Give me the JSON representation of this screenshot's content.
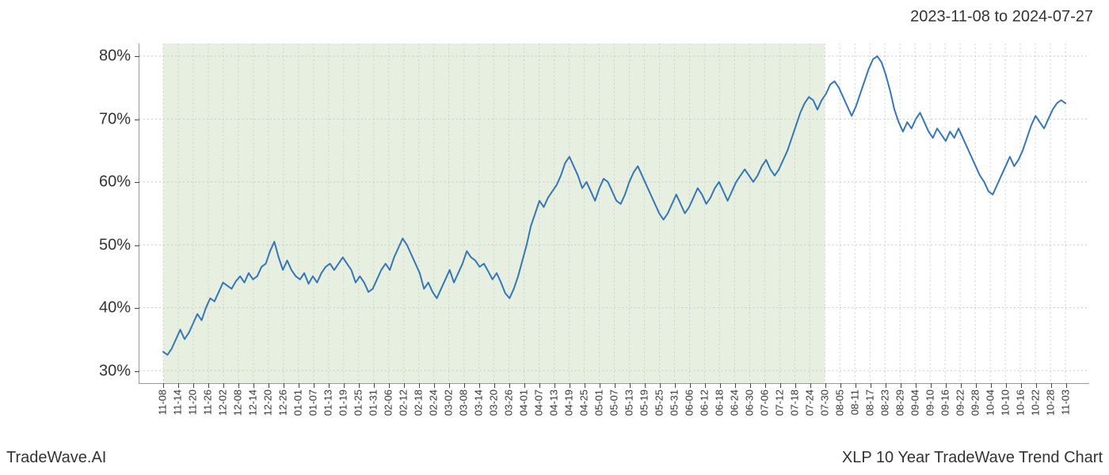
{
  "header": {
    "date_range": "2023-11-08 to 2024-07-27"
  },
  "footer": {
    "branding": "TradeWave.AI",
    "chart_title": "XLP 10 Year TradeWave Trend Chart"
  },
  "chart": {
    "type": "line",
    "background_color": "#ffffff",
    "highlight_band": {
      "start_label": "11-08",
      "end_label": "07-24",
      "fill_color": "#dfe9d6",
      "fill_opacity": 0.75
    },
    "line_color": "#3576b6",
    "line_width": 2,
    "grid": {
      "vertical_color": "#cfcfcf",
      "vertical_dash": "2,3",
      "horizontal_color": "#c8c8c8",
      "horizontal_dash": "2,3"
    },
    "y_axis": {
      "min": 28,
      "max": 82,
      "ticks": [
        30,
        40,
        50,
        60,
        70,
        80
      ],
      "tick_labels": [
        "30%",
        "40%",
        "50%",
        "60%",
        "70%",
        "80%"
      ],
      "label_fontsize": 20,
      "label_color": "#333333"
    },
    "x_axis": {
      "tick_labels": [
        "11-08",
        "11-14",
        "11-20",
        "11-26",
        "12-02",
        "12-08",
        "12-14",
        "12-20",
        "12-26",
        "01-01",
        "01-07",
        "01-13",
        "01-19",
        "01-25",
        "01-31",
        "02-06",
        "02-12",
        "02-18",
        "02-24",
        "03-02",
        "03-08",
        "03-14",
        "03-20",
        "03-26",
        "04-01",
        "04-07",
        "04-13",
        "04-19",
        "04-25",
        "05-01",
        "05-07",
        "05-13",
        "05-19",
        "05-25",
        "05-31",
        "06-06",
        "06-12",
        "06-18",
        "06-24",
        "06-30",
        "07-06",
        "07-12",
        "07-18",
        "07-24",
        "07-30",
        "08-05",
        "08-11",
        "08-17",
        "08-23",
        "08-29",
        "09-04",
        "09-10",
        "09-16",
        "09-22",
        "09-28",
        "10-04",
        "10-10",
        "10-16",
        "10-22",
        "10-28",
        "11-03"
      ],
      "label_fontsize": 13,
      "label_color": "#333333",
      "rotation_deg": -90
    },
    "series": {
      "name": "XLP trend",
      "values": [
        33.0,
        32.5,
        33.5,
        35.0,
        36.5,
        35.0,
        36.0,
        37.5,
        39.0,
        38.0,
        40.0,
        41.5,
        41.0,
        42.5,
        44.0,
        43.5,
        43.0,
        44.2,
        45.0,
        44.0,
        45.5,
        44.5,
        45.0,
        46.5,
        47.0,
        49.0,
        50.5,
        48.0,
        46.0,
        47.5,
        46.0,
        45.0,
        44.5,
        45.5,
        43.8,
        45.0,
        44.0,
        45.5,
        46.5,
        47.0,
        46.0,
        47.0,
        48.0,
        47.0,
        46.0,
        44.0,
        45.0,
        44.0,
        42.5,
        43.0,
        44.5,
        46.0,
        47.0,
        46.0,
        48.0,
        49.5,
        51.0,
        50.0,
        48.5,
        47.0,
        45.5,
        43.0,
        44.0,
        42.5,
        41.5,
        43.0,
        44.5,
        46.0,
        44.0,
        45.5,
        47.0,
        49.0,
        48.0,
        47.5,
        46.5,
        47.0,
        45.8,
        44.5,
        45.5,
        44.0,
        42.3,
        41.5,
        43.0,
        45.0,
        47.5,
        50.0,
        53.0,
        55.0,
        57.0,
        56.0,
        57.5,
        58.5,
        59.5,
        61.0,
        63.0,
        64.0,
        62.5,
        61.0,
        59.0,
        60.0,
        58.5,
        57.0,
        59.0,
        60.5,
        60.0,
        58.5,
        57.0,
        56.5,
        58.0,
        60.0,
        61.5,
        62.5,
        61.0,
        59.5,
        58.0,
        56.5,
        55.0,
        54.0,
        55.0,
        56.5,
        58.0,
        56.5,
        55.0,
        56.0,
        57.5,
        59.0,
        58.0,
        56.5,
        57.5,
        59.0,
        60.0,
        58.5,
        57.0,
        58.5,
        60.0,
        61.0,
        62.0,
        61.0,
        60.0,
        61.0,
        62.5,
        63.5,
        62.0,
        61.0,
        62.0,
        63.5,
        65.0,
        67.0,
        69.0,
        71.0,
        72.5,
        73.5,
        73.0,
        71.5,
        73.0,
        74.0,
        75.5,
        76.0,
        75.0,
        73.5,
        72.0,
        70.5,
        72.0,
        74.0,
        76.0,
        78.0,
        79.5,
        80.0,
        79.0,
        77.0,
        74.5,
        71.5,
        69.5,
        68.0,
        69.5,
        68.5,
        70.0,
        71.0,
        69.5,
        68.0,
        67.0,
        68.5,
        67.5,
        66.5,
        68.0,
        67.0,
        68.5,
        67.0,
        65.5,
        64.0,
        62.5,
        61.0,
        60.0,
        58.5,
        58.0,
        59.5,
        61.0,
        62.5,
        64.0,
        62.5,
        63.5,
        65.0,
        67.0,
        69.0,
        70.5,
        69.5,
        68.5,
        70.0,
        71.5,
        72.5,
        73.0,
        72.5
      ]
    }
  }
}
